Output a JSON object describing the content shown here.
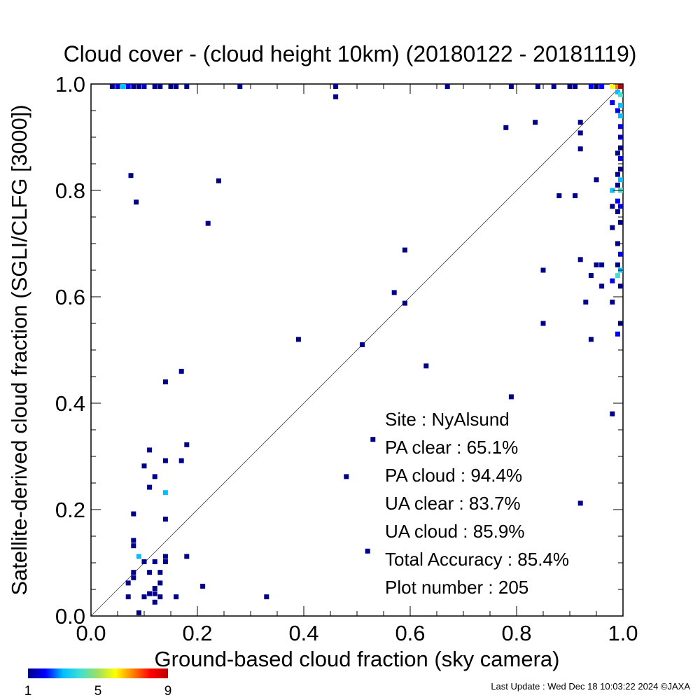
{
  "chart_data": {
    "type": "heatmap",
    "title": "Cloud cover - (cloud height 10km)  (20180122 - 20181119)",
    "xlabel": "Ground-based cloud fraction (sky camera)",
    "ylabel": "Satellite-derived cloud fraction (SGLI/CLFG [3000])",
    "xlim": [
      0.0,
      1.0
    ],
    "ylim": [
      0.0,
      1.0
    ],
    "x_ticks": [
      "0.0",
      "0.2",
      "0.4",
      "0.6",
      "0.8",
      "1.0"
    ],
    "y_ticks": [
      "0.0",
      "0.2",
      "0.4",
      "0.6",
      "0.8",
      "1.0"
    ],
    "grid": false,
    "reference_line": "y = x",
    "colorbar": {
      "min": 1,
      "max": 9,
      "tick_labels": [
        "1",
        "5",
        "9"
      ],
      "colors": [
        "#00008b",
        "#0000ff",
        "#00bfff",
        "#40e0d0",
        "#a0e060",
        "#ffff00",
        "#ff8000",
        "#ff0000",
        "#c00000"
      ]
    },
    "stats": [
      {
        "label": "Site : NyAlsund",
        "value": ""
      },
      {
        "label": "PA clear : ",
        "value": "65.1%"
      },
      {
        "label": "PA cloud : ",
        "value": "94.4%"
      },
      {
        "label": "UA clear : ",
        "value": "83.7%"
      },
      {
        "label": "UA cloud : ",
        "value": "85.9%"
      },
      {
        "label": "Total Accuracy : ",
        "value": "85.4%"
      },
      {
        "label": "Plot number : ",
        "value": "205"
      }
    ],
    "points": [
      [
        0.04,
        1.0,
        1
      ],
      [
        0.05,
        1.0,
        2
      ],
      [
        0.06,
        1.0,
        3
      ],
      [
        0.07,
        1.0,
        2
      ],
      [
        0.08,
        1.0,
        1
      ],
      [
        0.09,
        1.0,
        1
      ],
      [
        0.1,
        1.0,
        2
      ],
      [
        0.12,
        1.0,
        1
      ],
      [
        0.13,
        1.0,
        1
      ],
      [
        0.15,
        1.0,
        1
      ],
      [
        0.16,
        1.0,
        1
      ],
      [
        0.18,
        1.0,
        1
      ],
      [
        0.28,
        1.0,
        1
      ],
      [
        0.46,
        1.0,
        1
      ],
      [
        0.67,
        1.0,
        1
      ],
      [
        0.79,
        1.0,
        1
      ],
      [
        0.84,
        1.0,
        1
      ],
      [
        0.87,
        1.0,
        1
      ],
      [
        0.9,
        1.0,
        1
      ],
      [
        0.91,
        1.0,
        1
      ],
      [
        0.94,
        1.0,
        2
      ],
      [
        0.95,
        1.0,
        1
      ],
      [
        0.96,
        1.0,
        2
      ],
      [
        0.98,
        1.0,
        6
      ],
      [
        0.99,
        1.0,
        7
      ],
      [
        1.0,
        1.0,
        9
      ],
      [
        0.46,
        0.976,
        1
      ],
      [
        0.99,
        0.985,
        3
      ],
      [
        1.0,
        0.98,
        4
      ],
      [
        0.98,
        0.965,
        2
      ],
      [
        1.0,
        0.96,
        3
      ],
      [
        0.99,
        0.95,
        2
      ],
      [
        1.0,
        0.94,
        3
      ],
      [
        1.0,
        0.92,
        2
      ],
      [
        1.0,
        0.9,
        2
      ],
      [
        1.0,
        0.88,
        1
      ],
      [
        0.99,
        0.87,
        1
      ],
      [
        1.0,
        0.86,
        2
      ],
      [
        1.0,
        0.84,
        1
      ],
      [
        0.99,
        0.83,
        1
      ],
      [
        1.0,
        0.82,
        3
      ],
      [
        0.99,
        0.81,
        1
      ],
      [
        1.0,
        0.8,
        4
      ],
      [
        0.98,
        0.8,
        3
      ],
      [
        0.99,
        0.78,
        2
      ],
      [
        1.0,
        0.77,
        2
      ],
      [
        0.98,
        0.77,
        1
      ],
      [
        0.99,
        0.76,
        1
      ],
      [
        1.0,
        0.74,
        1
      ],
      [
        0.98,
        0.73,
        1
      ],
      [
        0.99,
        0.7,
        1
      ],
      [
        1.0,
        0.68,
        2
      ],
      [
        0.99,
        0.66,
        1
      ],
      [
        1.0,
        0.65,
        3
      ],
      [
        0.99,
        0.64,
        4
      ],
      [
        0.98,
        0.63,
        2
      ],
      [
        1.0,
        0.62,
        1
      ],
      [
        0.98,
        0.59,
        1
      ],
      [
        0.99,
        0.53,
        2
      ],
      [
        1.0,
        0.55,
        1
      ],
      [
        0.98,
        0.38,
        1
      ],
      [
        0.78,
        0.918,
        1
      ],
      [
        0.835,
        0.928,
        1
      ],
      [
        0.92,
        0.928,
        1
      ],
      [
        0.92,
        0.908,
        1
      ],
      [
        0.92,
        0.878,
        1
      ],
      [
        0.95,
        0.82,
        1
      ],
      [
        0.88,
        0.79,
        1
      ],
      [
        0.91,
        0.79,
        1
      ],
      [
        0.92,
        0.67,
        1
      ],
      [
        0.94,
        0.64,
        1
      ],
      [
        0.95,
        0.66,
        1
      ],
      [
        0.96,
        0.66,
        1
      ],
      [
        0.96,
        0.62,
        1
      ],
      [
        0.85,
        0.65,
        1
      ],
      [
        0.93,
        0.59,
        1
      ],
      [
        0.85,
        0.55,
        1
      ],
      [
        0.94,
        0.52,
        1
      ],
      [
        0.79,
        0.412,
        1
      ],
      [
        0.92,
        0.212,
        1
      ],
      [
        0.075,
        0.828,
        1
      ],
      [
        0.085,
        0.778,
        1
      ],
      [
        0.24,
        0.818,
        1
      ],
      [
        0.22,
        0.738,
        1
      ],
      [
        0.59,
        0.688,
        1
      ],
      [
        0.57,
        0.608,
        1
      ],
      [
        0.59,
        0.588,
        1
      ],
      [
        0.39,
        0.52,
        1
      ],
      [
        0.51,
        0.51,
        1
      ],
      [
        0.63,
        0.47,
        1
      ],
      [
        0.17,
        0.46,
        1
      ],
      [
        0.14,
        0.44,
        1
      ],
      [
        0.53,
        0.332,
        1
      ],
      [
        0.48,
        0.262,
        1
      ],
      [
        0.52,
        0.122,
        1
      ],
      [
        0.33,
        0.036,
        1
      ],
      [
        0.21,
        0.056,
        1
      ],
      [
        0.18,
        0.322,
        1
      ],
      [
        0.11,
        0.312,
        1
      ],
      [
        0.14,
        0.292,
        1
      ],
      [
        0.17,
        0.292,
        1
      ],
      [
        0.1,
        0.282,
        1
      ],
      [
        0.12,
        0.262,
        1
      ],
      [
        0.11,
        0.242,
        1
      ],
      [
        0.14,
        0.232,
        3
      ],
      [
        0.08,
        0.192,
        1
      ],
      [
        0.14,
        0.182,
        1
      ],
      [
        0.08,
        0.142,
        1
      ],
      [
        0.08,
        0.132,
        1
      ],
      [
        0.09,
        0.112,
        3
      ],
      [
        0.1,
        0.102,
        1
      ],
      [
        0.14,
        0.112,
        1
      ],
      [
        0.14,
        0.102,
        1
      ],
      [
        0.18,
        0.112,
        1
      ],
      [
        0.12,
        0.102,
        1
      ],
      [
        0.08,
        0.082,
        1
      ],
      [
        0.11,
        0.082,
        1
      ],
      [
        0.08,
        0.072,
        1
      ],
      [
        0.07,
        0.062,
        1
      ],
      [
        0.13,
        0.062,
        1
      ],
      [
        0.12,
        0.052,
        1
      ],
      [
        0.11,
        0.042,
        1
      ],
      [
        0.12,
        0.042,
        1
      ],
      [
        0.13,
        0.082,
        1
      ],
      [
        0.07,
        0.036,
        1
      ],
      [
        0.1,
        0.036,
        1
      ],
      [
        0.13,
        0.036,
        1
      ],
      [
        0.16,
        0.036,
        1
      ],
      [
        0.12,
        0.026,
        1
      ],
      [
        0.09,
        0.006,
        1
      ]
    ]
  },
  "footer": {
    "last_update": "Last Update : Wed Dec 18 10:03:22 2024  ©JAXA"
  }
}
